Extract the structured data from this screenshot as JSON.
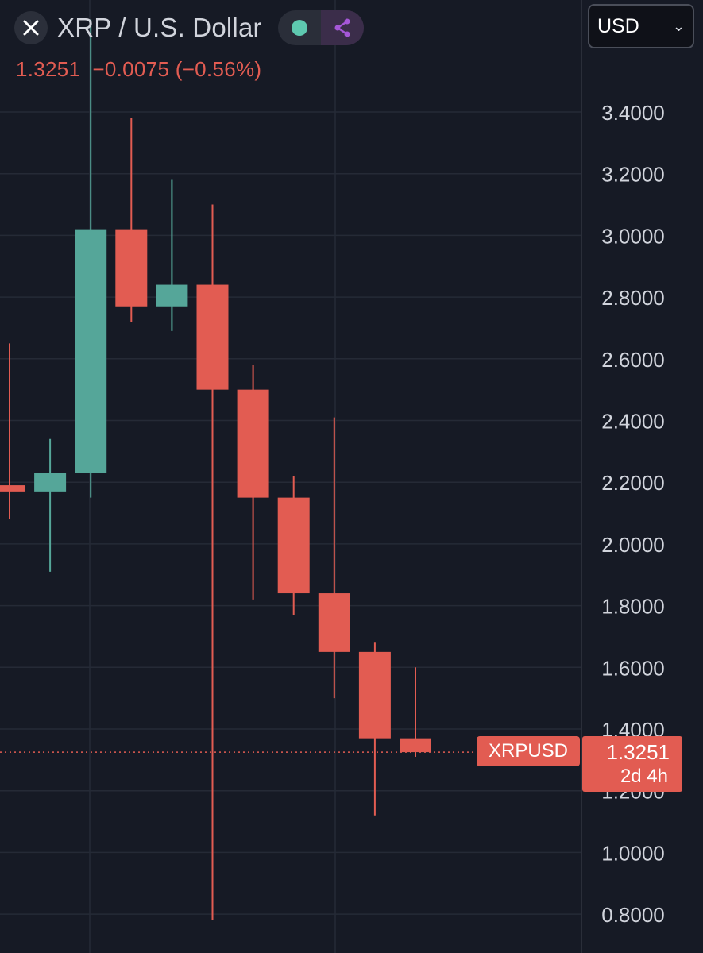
{
  "header": {
    "title": "XRP / U.S. Dollar",
    "logo_icon": "x-logo-icon",
    "status_left_icon": "market-open-dot-icon",
    "status_right_icon": "share-nodes-icon"
  },
  "quote": {
    "last": "1.3251",
    "change": "−0.0075",
    "change_pct": "(−0.56%)"
  },
  "currency_select": {
    "value": "USD",
    "icon": "chevron-down-icon"
  },
  "price_label": {
    "symbol": "XRPUSD",
    "price": "1.3251",
    "countdown": "2d 4h"
  },
  "colors": {
    "background": "#161a25",
    "grid": "#252a36",
    "up": "#55a699",
    "down": "#e25c52",
    "text": "#d1d4dc"
  },
  "chart_data": {
    "type": "candlestick",
    "title": "",
    "xlabel": "",
    "ylabel": "",
    "ylim": [
      0.75,
      3.55
    ],
    "y_ticks": [
      "0.8000",
      "1.0000",
      "1.2000",
      "1.4000",
      "1.6000",
      "1.8000",
      "2.0000",
      "2.2000",
      "2.4000",
      "2.6000",
      "2.8000",
      "3.0000",
      "3.2000",
      "3.4000"
    ],
    "last_price": 1.3251,
    "series": [
      {
        "values": [
          {
            "open": 2.19,
            "high": 2.65,
            "low": 2.08,
            "close": 2.17
          },
          {
            "open": 2.17,
            "high": 2.34,
            "low": 1.91,
            "close": 2.23
          },
          {
            "open": 2.23,
            "high": 3.7,
            "low": 2.15,
            "close": 3.02
          },
          {
            "open": 3.02,
            "high": 3.38,
            "low": 2.72,
            "close": 2.77
          },
          {
            "open": 2.77,
            "high": 3.18,
            "low": 2.69,
            "close": 2.84
          },
          {
            "open": 2.84,
            "high": 3.1,
            "low": 0.78,
            "close": 2.5
          },
          {
            "open": 2.5,
            "high": 2.58,
            "low": 1.82,
            "close": 2.15
          },
          {
            "open": 2.15,
            "high": 2.22,
            "low": 1.77,
            "close": 1.84
          },
          {
            "open": 1.84,
            "high": 2.41,
            "low": 1.5,
            "close": 1.65
          },
          {
            "open": 1.65,
            "high": 1.68,
            "low": 1.12,
            "close": 1.37
          },
          {
            "open": 1.37,
            "high": 1.6,
            "low": 1.31,
            "close": 1.3251
          }
        ]
      }
    ]
  }
}
